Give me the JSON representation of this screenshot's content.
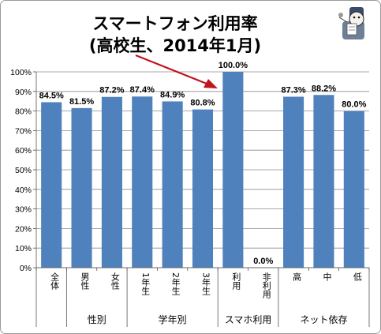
{
  "chart_data": {
    "type": "bar",
    "title_line1": "スマートフォン利用率",
    "title_line2": "(高校生、2014年1月)",
    "yticks": [
      "0%",
      "10%",
      "20%",
      "30%",
      "40%",
      "50%",
      "60%",
      "70%",
      "80%",
      "90%",
      "100%"
    ],
    "ylim": [
      0,
      100
    ],
    "categories": [
      "全体",
      "男性",
      "女性",
      "1年生",
      "2年生",
      "3年生",
      "利用",
      "非利用",
      "高",
      "中",
      "低"
    ],
    "values": [
      84.5,
      81.5,
      87.2,
      87.4,
      84.9,
      80.8,
      100.0,
      0.0,
      87.3,
      88.2,
      80.0
    ],
    "data_labels": [
      "84.5%",
      "81.5%",
      "87.2%",
      "87.4%",
      "84.9%",
      "80.8%",
      "100.0%",
      "0.0%",
      "87.3%",
      "88.2%",
      "80.0%"
    ],
    "groups": [
      {
        "label": "",
        "span": [
          0,
          0
        ]
      },
      {
        "label": "性別",
        "span": [
          1,
          2
        ]
      },
      {
        "label": "学年別",
        "span": [
          3,
          5
        ]
      },
      {
        "label": "スマホ利用",
        "span": [
          6,
          7
        ]
      },
      {
        "label": "ネット依存",
        "span": [
          8,
          10
        ]
      }
    ],
    "bar_color": "#4f81bd",
    "arrow_color": "#c0141e",
    "grid": true,
    "legend": "none"
  }
}
